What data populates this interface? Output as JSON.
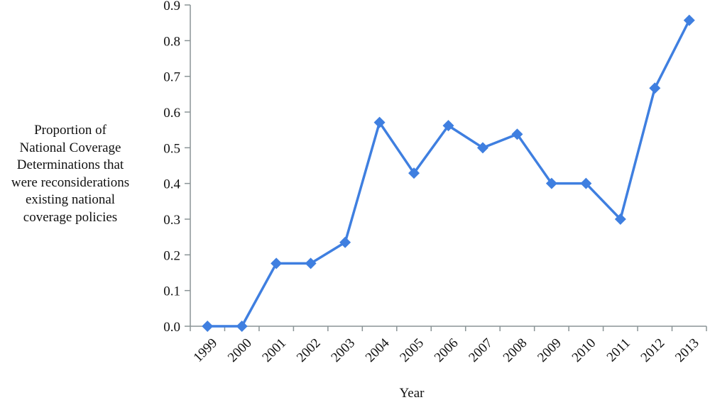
{
  "chart_data": {
    "type": "line",
    "title": "",
    "xlabel": "Year",
    "ylabel": "Proportion of National Coverage Determinations that were reconsiderations existing national coverage policies",
    "ylabel_lines": [
      "Proportion of",
      "National Coverage",
      "Determinations that",
      "were reconsiderations",
      "existing national",
      "coverage policies"
    ],
    "categories": [
      "1999",
      "2000",
      "2001",
      "2002",
      "2003",
      "2004",
      "2005",
      "2006",
      "2007",
      "2008",
      "2009",
      "2010",
      "2011",
      "2012",
      "2013"
    ],
    "series": [
      {
        "name": "Proportion",
        "values": [
          0.0,
          0.0,
          0.176,
          0.176,
          0.235,
          0.571,
          0.429,
          0.562,
          0.5,
          0.538,
          0.4,
          0.4,
          0.3,
          0.667,
          0.857
        ],
        "color": "#3f7fe0",
        "marker": "diamond"
      }
    ],
    "ylim": [
      0,
      0.9
    ],
    "yticks": [
      "0.0",
      "0.1",
      "0.2",
      "0.3",
      "0.4",
      "0.5",
      "0.6",
      "0.7",
      "0.8",
      "0.9"
    ],
    "grid": false,
    "legend": null,
    "axis_color": "#8a9496"
  }
}
